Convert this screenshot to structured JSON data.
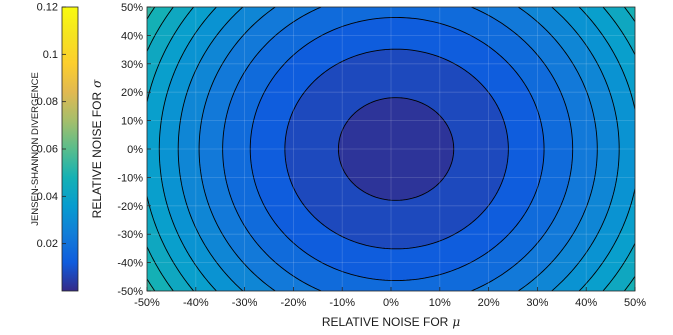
{
  "chart_data": {
    "type": "heatmap",
    "subtype": "filled-contour",
    "title": "",
    "xlabel": "RELATIVE NOISE FOR",
    "xlabel_symbol": "μ",
    "ylabel": "RELATIVE NOISE FOR",
    "ylabel_symbol": "σ",
    "xlim": [
      -50,
      50
    ],
    "ylim": [
      -50,
      50
    ],
    "x_ticks": [
      -50,
      -40,
      -30,
      -20,
      -10,
      0,
      10,
      20,
      30,
      40,
      50
    ],
    "y_ticks": [
      -50,
      -40,
      -30,
      -20,
      -10,
      0,
      10,
      20,
      30,
      40,
      50
    ],
    "x_tick_labels": [
      "-50%",
      "-40%",
      "-30%",
      "-20%",
      "-10%",
      "0%",
      "10%",
      "20%",
      "30%",
      "40%",
      "50%"
    ],
    "y_tick_labels": [
      "-50%",
      "-40%",
      "-30%",
      "-20%",
      "-10%",
      "0%",
      "10%",
      "20%",
      "30%",
      "40%",
      "50%"
    ],
    "grid": true,
    "colormap": "parula",
    "colorbar": {
      "label": "JENSEN-SHANNON DIVERGENCE",
      "range": [
        0,
        0.12
      ],
      "ticks": [
        0.02,
        0.04,
        0.06,
        0.08,
        0.1,
        0.12
      ],
      "tick_labels": [
        "0.02",
        "0.04",
        "0.06",
        "0.08",
        "0.1",
        "0.12"
      ],
      "placement": "left"
    },
    "minimum_at": [
      1,
      0
    ],
    "contour_levels": [
      0.005,
      0.01,
      0.015,
      0.02,
      0.025,
      0.03,
      0.035,
      0.04,
      0.045,
      0.05,
      0.055,
      0.06,
      0.065,
      0.07,
      0.075,
      0.08,
      0.085,
      0.09,
      0.095,
      0.1,
      0.105,
      0.11,
      0.115
    ]
  }
}
